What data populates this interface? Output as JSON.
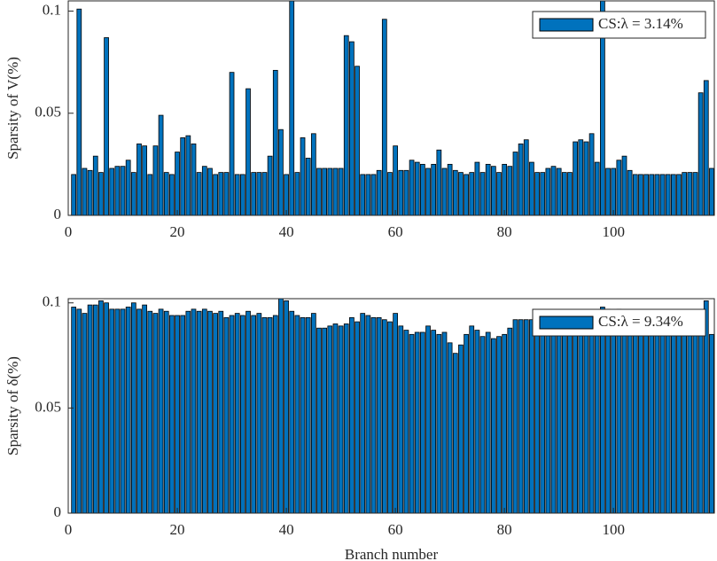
{
  "chart_data": [
    {
      "type": "bar",
      "ylabel": "Sparsity of V(%)",
      "legend_label": "CS:λ = 3.14%",
      "legend": "upper right",
      "color": "#0072bd",
      "xlim": [
        0,
        118.5
      ],
      "xticks": [
        0,
        20,
        40,
        60,
        80,
        100
      ],
      "ylim": [
        0,
        0.105
      ],
      "yticks": [
        0,
        0.05,
        0.1
      ],
      "x": [
        1,
        2,
        3,
        4,
        5,
        6,
        7,
        8,
        9,
        10,
        11,
        12,
        13,
        14,
        15,
        16,
        17,
        18,
        19,
        20,
        21,
        22,
        23,
        24,
        25,
        26,
        27,
        28,
        29,
        30,
        31,
        32,
        33,
        34,
        35,
        36,
        37,
        38,
        39,
        40,
        41,
        42,
        43,
        44,
        45,
        46,
        47,
        48,
        49,
        50,
        51,
        52,
        53,
        54,
        55,
        56,
        57,
        58,
        59,
        60,
        61,
        62,
        63,
        64,
        65,
        66,
        67,
        68,
        69,
        70,
        71,
        72,
        73,
        74,
        75,
        76,
        77,
        78,
        79,
        80,
        81,
        82,
        83,
        84,
        85,
        86,
        87,
        88,
        89,
        90,
        91,
        92,
        93,
        94,
        95,
        96,
        97,
        98,
        99,
        100,
        101,
        102,
        103,
        104,
        105,
        106,
        107,
        108,
        109,
        110,
        111,
        112,
        113,
        114,
        115,
        116,
        117,
        118
      ],
      "values": [
        0.02,
        0.101,
        0.023,
        0.022,
        0.029,
        0.021,
        0.087,
        0.023,
        0.024,
        0.024,
        0.027,
        0.021,
        0.035,
        0.034,
        0.02,
        0.034,
        0.049,
        0.021,
        0.02,
        0.031,
        0.038,
        0.039,
        0.035,
        0.021,
        0.024,
        0.023,
        0.02,
        0.021,
        0.021,
        0.07,
        0.02,
        0.02,
        0.062,
        0.021,
        0.021,
        0.021,
        0.029,
        0.071,
        0.042,
        0.02,
        0.11,
        0.021,
        0.038,
        0.028,
        0.04,
        0.023,
        0.023,
        0.023,
        0.023,
        0.023,
        0.088,
        0.085,
        0.073,
        0.02,
        0.02,
        0.02,
        0.022,
        0.096,
        0.021,
        0.034,
        0.022,
        0.022,
        0.027,
        0.026,
        0.025,
        0.023,
        0.025,
        0.032,
        0.023,
        0.025,
        0.022,
        0.021,
        0.02,
        0.021,
        0.026,
        0.021,
        0.025,
        0.024,
        0.021,
        0.025,
        0.024,
        0.031,
        0.035,
        0.037,
        0.026,
        0.021,
        0.021,
        0.023,
        0.024,
        0.023,
        0.021,
        0.021,
        0.036,
        0.037,
        0.036,
        0.04,
        0.026,
        0.11,
        0.023,
        0.023,
        0.027,
        0.029,
        0.022,
        0.02,
        0.02,
        0.02,
        0.02,
        0.02,
        0.02,
        0.02,
        0.02,
        0.02,
        0.021,
        0.021,
        0.021,
        0.06,
        0.066,
        0.023
      ]
    },
    {
      "type": "bar",
      "ylabel": "Sparsity of δ(%)",
      "xlabel": "Branch number",
      "legend_label": "CS:λ = 9.34%",
      "legend": "upper right",
      "color": "#0072bd",
      "xlim": [
        0,
        118.5
      ],
      "xticks": [
        0,
        20,
        40,
        60,
        80,
        100
      ],
      "ylim": [
        0,
        0.102
      ],
      "yticks": [
        0,
        0.05,
        0.1
      ],
      "x": [
        1,
        2,
        3,
        4,
        5,
        6,
        7,
        8,
        9,
        10,
        11,
        12,
        13,
        14,
        15,
        16,
        17,
        18,
        19,
        20,
        21,
        22,
        23,
        24,
        25,
        26,
        27,
        28,
        29,
        30,
        31,
        32,
        33,
        34,
        35,
        36,
        37,
        38,
        39,
        40,
        41,
        42,
        43,
        44,
        45,
        46,
        47,
        48,
        49,
        50,
        51,
        52,
        53,
        54,
        55,
        56,
        57,
        58,
        59,
        60,
        61,
        62,
        63,
        64,
        65,
        66,
        67,
        68,
        69,
        70,
        71,
        72,
        73,
        74,
        75,
        76,
        77,
        78,
        79,
        80,
        81,
        82,
        83,
        84,
        85,
        86,
        87,
        88,
        89,
        90,
        91,
        92,
        93,
        94,
        95,
        96,
        97,
        98,
        99,
        100,
        101,
        102,
        103,
        104,
        105,
        106,
        107,
        108,
        109,
        110,
        111,
        112,
        113,
        114,
        115,
        116,
        117,
        118
      ],
      "values": [
        0.098,
        0.097,
        0.095,
        0.099,
        0.099,
        0.101,
        0.1,
        0.097,
        0.097,
        0.097,
        0.098,
        0.1,
        0.097,
        0.099,
        0.096,
        0.095,
        0.097,
        0.096,
        0.094,
        0.094,
        0.094,
        0.096,
        0.097,
        0.096,
        0.097,
        0.096,
        0.095,
        0.096,
        0.093,
        0.094,
        0.095,
        0.094,
        0.096,
        0.094,
        0.095,
        0.093,
        0.093,
        0.094,
        0.102,
        0.101,
        0.096,
        0.094,
        0.093,
        0.093,
        0.095,
        0.088,
        0.088,
        0.089,
        0.09,
        0.089,
        0.09,
        0.093,
        0.091,
        0.095,
        0.094,
        0.093,
        0.093,
        0.092,
        0.091,
        0.095,
        0.089,
        0.087,
        0.085,
        0.086,
        0.086,
        0.089,
        0.087,
        0.085,
        0.086,
        0.081,
        0.076,
        0.08,
        0.085,
        0.089,
        0.087,
        0.084,
        0.086,
        0.083,
        0.084,
        0.085,
        0.088,
        0.092,
        0.092,
        0.092,
        0.092,
        0.092,
        0.085,
        0.095,
        0.092,
        0.095,
        0.094,
        0.094,
        0.093,
        0.086,
        0.085,
        0.085,
        0.085,
        0.098,
        0.097,
        0.089,
        0.097,
        0.085,
        0.085,
        0.085,
        0.085,
        0.085,
        0.085,
        0.085,
        0.085,
        0.085,
        0.085,
        0.085,
        0.085,
        0.085,
        0.085,
        0.085,
        0.101,
        0.085
      ]
    }
  ]
}
